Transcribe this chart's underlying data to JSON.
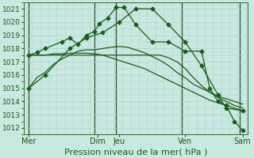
{
  "bg_color": "#c8e8e0",
  "grid_color": "#b0d8d0",
  "line_color": "#1a5c1a",
  "dark_vline_color": "#2a4a2a",
  "title": "Pression niveau de la mer( hPa )",
  "ylim": [
    1011.5,
    1021.5
  ],
  "yticks": [
    1012,
    1013,
    1014,
    1015,
    1016,
    1017,
    1018,
    1019,
    1020,
    1021
  ],
  "xlim": [
    -0.3,
    13.3
  ],
  "xtick_labels": [
    "Mer",
    "Dim",
    "Jeu",
    "Ven",
    "Sam"
  ],
  "xtick_positions": [
    0,
    4.2,
    5.5,
    9.5,
    13.0
  ],
  "vline_positions": [
    0,
    4.0,
    5.3,
    9.3,
    12.8
  ],
  "line1_x": [
    0,
    0.5,
    1.0,
    1.5,
    2.0,
    2.5,
    3.0,
    3.5,
    4.0,
    4.5,
    5.0,
    5.5,
    6.0,
    6.5,
    7.0,
    7.5,
    8.0,
    8.5,
    9.0,
    9.5,
    10.0,
    10.5,
    11.0,
    11.5,
    12.0,
    12.5,
    13.0
  ],
  "line1_y": [
    1015.0,
    1015.8,
    1016.2,
    1016.8,
    1017.2,
    1017.5,
    1017.8,
    1017.9,
    1017.9,
    1018.0,
    1018.1,
    1018.15,
    1018.1,
    1017.9,
    1017.7,
    1017.4,
    1017.1,
    1016.7,
    1016.2,
    1015.8,
    1015.3,
    1015.0,
    1014.7,
    1014.4,
    1014.2,
    1014.0,
    1013.8
  ],
  "line2_x": [
    0,
    0.5,
    1.0,
    1.5,
    2.0,
    2.5,
    3.0,
    3.5,
    4.0,
    4.5,
    5.0,
    5.5,
    6.0,
    6.5,
    7.0,
    7.5,
    8.0,
    8.5,
    9.0,
    9.5,
    10.0,
    10.5,
    11.0,
    11.5,
    12.0,
    12.5,
    13.0
  ],
  "line2_y": [
    1017.5,
    1017.5,
    1017.5,
    1017.5,
    1017.5,
    1017.5,
    1017.5,
    1017.5,
    1017.5,
    1017.5,
    1017.5,
    1017.5,
    1017.5,
    1017.5,
    1017.5,
    1017.5,
    1017.5,
    1017.3,
    1017.0,
    1016.5,
    1015.8,
    1015.2,
    1014.7,
    1014.3,
    1014.0,
    1013.7,
    1013.5
  ],
  "line3_x": [
    0,
    0.5,
    1.0,
    1.5,
    2.0,
    2.5,
    3.0,
    3.5,
    4.0,
    4.5,
    5.0,
    5.5,
    6.0,
    6.5,
    7.0,
    7.5,
    8.0,
    8.5,
    9.0,
    9.5,
    10.0,
    10.5,
    11.0,
    11.5,
    12.0,
    12.5,
    13.0
  ],
  "line3_y": [
    1017.5,
    1017.5,
    1017.5,
    1017.6,
    1017.6,
    1017.65,
    1017.65,
    1017.65,
    1017.6,
    1017.5,
    1017.3,
    1017.1,
    1016.9,
    1016.7,
    1016.5,
    1016.2,
    1015.9,
    1015.6,
    1015.3,
    1015.0,
    1014.7,
    1014.4,
    1014.1,
    1013.9,
    1013.7,
    1013.5,
    1013.3
  ],
  "line4_x": [
    0.0,
    1.0,
    2.5,
    3.5,
    4.5,
    5.5,
    6.5,
    7.5,
    8.5,
    9.5,
    10.5,
    11.5,
    12.0,
    13.0
  ],
  "line4_y": [
    1015.0,
    1016.0,
    1018.0,
    1018.8,
    1019.2,
    1020.0,
    1021.0,
    1021.0,
    1019.8,
    1018.5,
    1016.7,
    1014.5,
    1013.5,
    1013.3
  ],
  "line5_x": [
    0.0,
    0.5,
    1.0,
    2.0,
    2.5,
    3.0,
    3.5,
    4.0,
    4.3,
    4.8,
    5.3,
    5.8,
    6.5,
    7.5,
    8.5,
    9.5,
    10.5,
    11.0,
    11.5,
    12.0,
    12.5,
    13.0
  ],
  "line5_y": [
    1017.5,
    1017.7,
    1018.0,
    1018.5,
    1018.8,
    1018.3,
    1019.0,
    1019.3,
    1019.9,
    1020.3,
    1021.1,
    1021.1,
    1019.8,
    1018.5,
    1018.5,
    1017.8,
    1017.8,
    1015.0,
    1014.0,
    1013.7,
    1012.5,
    1011.8
  ],
  "marker_lines": {
    "line4_markers_x": [
      0.0,
      1.0,
      2.5,
      3.5,
      4.5,
      5.5,
      6.5,
      7.5,
      8.5,
      9.5,
      10.5,
      11.5,
      12.0,
      13.0
    ],
    "line4_markers_y": [
      1015.0,
      1016.0,
      1018.0,
      1018.8,
      1019.2,
      1020.0,
      1021.0,
      1021.0,
      1019.8,
      1018.5,
      1016.7,
      1014.5,
      1013.5,
      1013.3
    ],
    "line5_markers_x": [
      0.0,
      0.5,
      1.0,
      2.0,
      2.5,
      3.0,
      3.5,
      4.0,
      4.3,
      4.8,
      5.3,
      5.8,
      6.5,
      7.5,
      8.5,
      9.5,
      10.5,
      11.0,
      11.5,
      12.0,
      12.5,
      13.0
    ],
    "line5_markers_y": [
      1017.5,
      1017.7,
      1018.0,
      1018.5,
      1018.8,
      1018.3,
      1019.0,
      1019.3,
      1019.9,
      1020.3,
      1021.1,
      1021.1,
      1019.8,
      1018.5,
      1018.5,
      1017.8,
      1017.8,
      1015.0,
      1014.0,
      1013.7,
      1012.5,
      1011.8
    ]
  },
  "marker_size": 2.5,
  "linewidth": 0.9,
  "ytick_fontsize": 6.5,
  "xtick_fontsize": 7,
  "xlabel_fontsize": 8
}
